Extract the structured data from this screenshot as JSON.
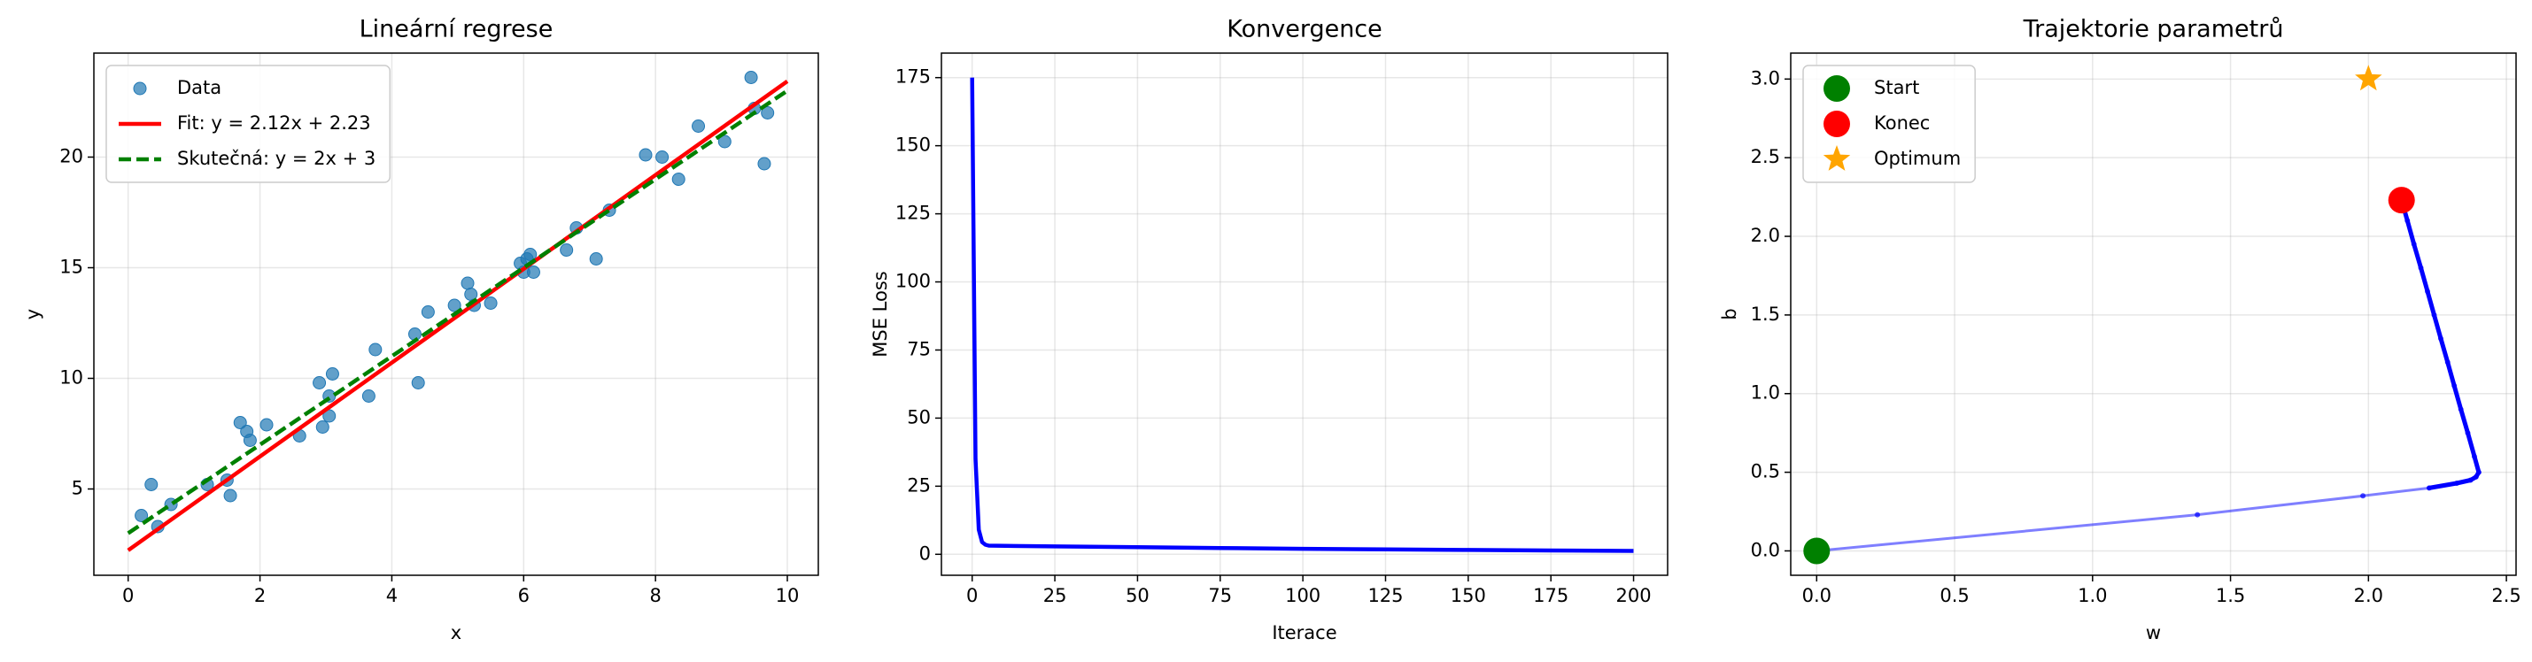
{
  "chart_data": [
    {
      "type": "scatter",
      "title": "Lineární regrese",
      "xlabel": "x",
      "ylabel": "y",
      "xlim": [
        -0.52,
        10.47
      ],
      "ylim": [
        1.1,
        24.7
      ],
      "xticks": [
        0,
        2,
        4,
        6,
        8,
        10
      ],
      "yticks": [
        5,
        10,
        15,
        20
      ],
      "grid": true,
      "legend": "upper left",
      "series": [
        {
          "name": "Data",
          "type": "scatter",
          "marker": "circle",
          "color": "#1f77b4",
          "x": [
            0.2,
            0.35,
            0.45,
            0.65,
            1.2,
            1.5,
            1.55,
            1.7,
            1.8,
            1.85,
            2.1,
            2.6,
            2.9,
            2.95,
            3.05,
            3.05,
            3.1,
            3.65,
            3.75,
            4.35,
            4.4,
            4.55,
            4.95,
            5.15,
            5.2,
            5.25,
            5.5,
            5.95,
            6.0,
            6.05,
            6.1,
            6.15,
            6.65,
            6.8,
            7.1,
            7.3,
            7.85,
            8.1,
            8.35,
            8.65,
            9.05,
            9.45,
            9.5,
            9.7,
            9.65
          ],
          "values": [
            3.8,
            5.2,
            3.3,
            4.3,
            5.2,
            5.4,
            4.7,
            8.0,
            7.6,
            7.2,
            7.9,
            7.4,
            9.8,
            7.8,
            9.2,
            8.3,
            10.2,
            9.2,
            11.3,
            12.0,
            9.8,
            13.0,
            13.3,
            14.3,
            13.8,
            13.3,
            13.4,
            15.2,
            14.8,
            15.4,
            15.6,
            14.8,
            15.8,
            16.8,
            15.4,
            17.6,
            20.1,
            20.0,
            19.0,
            21.4,
            20.7,
            23.6,
            22.2,
            22.0,
            19.7
          ]
        },
        {
          "name": "Fit: y = 2.12x + 2.23",
          "type": "line",
          "color": "#ff0000",
          "x": [
            0,
            10
          ],
          "values": [
            2.23,
            23.43
          ]
        },
        {
          "name": "Skutečná: y = 2x + 3",
          "type": "line",
          "linestyle": "dashed",
          "color": "#008000",
          "x": [
            0,
            10
          ],
          "values": [
            3,
            23
          ]
        }
      ]
    },
    {
      "type": "line",
      "title": "Konvergence",
      "xlabel": "Iterace",
      "ylabel": "MSE Loss",
      "xlim": [
        -9.3,
        210.3
      ],
      "ylim": [
        -7.7,
        184.0
      ],
      "xticks": [
        0,
        25,
        50,
        75,
        100,
        125,
        150,
        175,
        200
      ],
      "yticks": [
        0,
        25,
        50,
        75,
        100,
        125,
        150,
        175
      ],
      "grid": true,
      "series": [
        {
          "type": "line",
          "color": "#0000ff",
          "x": [
            0,
            1,
            2,
            3,
            4,
            5,
            10,
            25,
            50,
            75,
            100,
            125,
            150,
            175,
            200
          ],
          "values": [
            175,
            35,
            9,
            4.5,
            3.5,
            3.2,
            3.1,
            2.9,
            2.6,
            2.3,
            2.0,
            1.8,
            1.6,
            1.4,
            1.25
          ]
        }
      ]
    },
    {
      "type": "line",
      "title": "Trajektorie parametrů",
      "xlabel": "w",
      "ylabel": "b",
      "xlim": [
        -0.094,
        2.535
      ],
      "ylim": [
        -0.155,
        3.165
      ],
      "xticks": [
        {
          "value": 0,
          "label": "0.0"
        },
        {
          "value": 0.5,
          "label": "0.5"
        },
        {
          "value": 1,
          "label": "1.0"
        },
        {
          "value": 1.5,
          "label": "1.5"
        },
        {
          "value": 2,
          "label": "2.0"
        },
        {
          "value": 2.5,
          "label": "2.5"
        }
      ],
      "yticks": [
        {
          "value": 0,
          "label": "0.0"
        },
        {
          "value": 0.5,
          "label": "0.5"
        },
        {
          "value": 1,
          "label": "1.0"
        },
        {
          "value": 1.5,
          "label": "1.5"
        },
        {
          "value": 2,
          "label": "2.0"
        },
        {
          "value": 2.5,
          "label": "2.5"
        },
        {
          "value": 3,
          "label": "3.0"
        }
      ],
      "grid": true,
      "legend": "upper left",
      "series": [
        {
          "type": "trajectory",
          "color": "#0000ff",
          "x": [
            0,
            1.38,
            1.98,
            2.22,
            2.32,
            2.37,
            2.39,
            2.4,
            2.384,
            2.36,
            2.335,
            2.311,
            2.287,
            2.262,
            2.238,
            2.214,
            2.19,
            2.165,
            2.141,
            2.12
          ],
          "values": [
            0,
            0.23,
            0.35,
            0.4,
            0.43,
            0.45,
            0.47,
            0.5,
            0.6,
            0.75,
            0.9,
            1.05,
            1.2,
            1.35,
            1.5,
            1.65,
            1.8,
            1.95,
            2.1,
            2.23
          ]
        },
        {
          "name": "Start",
          "type": "scatter",
          "marker": "big-circle",
          "color": "#008000",
          "x": [
            0
          ],
          "values": [
            0
          ]
        },
        {
          "name": "Konec",
          "type": "scatter",
          "marker": "big-circle",
          "color": "#ff0000",
          "x": [
            2.12
          ],
          "values": [
            2.23
          ]
        },
        {
          "name": "Optimum",
          "type": "scatter",
          "marker": "star",
          "color": "#ffa500",
          "x": [
            2
          ],
          "values": [
            3
          ]
        }
      ]
    }
  ]
}
